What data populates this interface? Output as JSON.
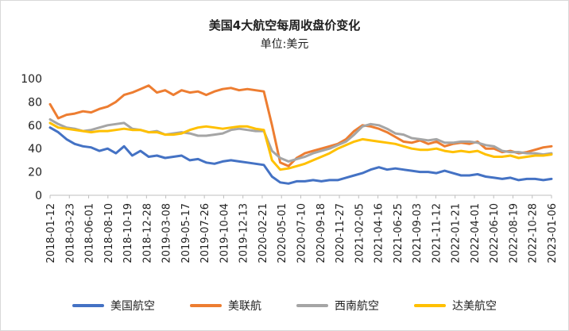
{
  "chart_data": {
    "type": "line",
    "title": "美国4大航空每周收盘价变化",
    "subtitle": "单位:美元",
    "xlabel": "",
    "ylabel": "",
    "ylim": [
      0,
      100
    ],
    "yticks": [
      0,
      20,
      40,
      60,
      80,
      100
    ],
    "grid": false,
    "legend": "bottom",
    "x_tick_labels": [
      "2018-01-12",
      "2018-03-23",
      "2018-06-01",
      "2018-08-10",
      "2018-10-19",
      "2018-12-28",
      "2019-03-08",
      "2019-05-17",
      "2019-07-26",
      "2019-10-04",
      "2019-12-13",
      "2020-02-21",
      "2020-05-01",
      "2020-07-10",
      "2020-09-18",
      "2020-11-27",
      "2021-02-05",
      "2021-04-16",
      "2021-06-25",
      "2021-09-03",
      "2021-11-12",
      "2022-01-21",
      "2022-04-01",
      "2022-06-10",
      "2022-08-19",
      "2022-10-28",
      "2023-01-06"
    ],
    "series": [
      {
        "name": "美国航空",
        "color": "#4472c4",
        "values": [
          58,
          54,
          48,
          44,
          42,
          41,
          38,
          40,
          36,
          42,
          34,
          38,
          33,
          34,
          32,
          33,
          34,
          30,
          31,
          28,
          27,
          29,
          30,
          29,
          28,
          27,
          26,
          16,
          11,
          10,
          12,
          12,
          13,
          12,
          13,
          13,
          15,
          17,
          19,
          22,
          24,
          22,
          23,
          22,
          21,
          20,
          20,
          19,
          21,
          19,
          17,
          17,
          18,
          16,
          15,
          14,
          15,
          13,
          14,
          14,
          13,
          14
        ]
      },
      {
        "name": "美联航",
        "color": "#ed7d31",
        "values": [
          78,
          66,
          69,
          70,
          72,
          71,
          74,
          76,
          80,
          86,
          88,
          91,
          94,
          88,
          90,
          86,
          90,
          88,
          89,
          86,
          89,
          91,
          92,
          90,
          91,
          90,
          89,
          60,
          28,
          25,
          32,
          36,
          38,
          40,
          42,
          44,
          48,
          55,
          60,
          59,
          57,
          54,
          50,
          46,
          45,
          47,
          44,
          46,
          42,
          44,
          45,
          44,
          46,
          40,
          40,
          37,
          38,
          36,
          37,
          39,
          41,
          42
        ]
      },
      {
        "name": "西南航空",
        "color": "#a5a5a5",
        "values": [
          65,
          61,
          58,
          57,
          55,
          56,
          58,
          60,
          61,
          62,
          57,
          56,
          54,
          55,
          52,
          53,
          54,
          53,
          51,
          51,
          52,
          53,
          56,
          57,
          56,
          55,
          55,
          38,
          32,
          29,
          31,
          33,
          36,
          38,
          40,
          43,
          46,
          52,
          59,
          61,
          60,
          57,
          53,
          52,
          49,
          48,
          47,
          48,
          45,
          45,
          46,
          46,
          45,
          43,
          42,
          38,
          37,
          37,
          36,
          36,
          35,
          36
        ]
      },
      {
        "name": "达美航空",
        "color": "#ffc000",
        "values": [
          62,
          58,
          57,
          56,
          55,
          54,
          55,
          55,
          56,
          57,
          56,
          56,
          54,
          54,
          52,
          52,
          53,
          56,
          58,
          59,
          58,
          57,
          58,
          59,
          59,
          57,
          56,
          30,
          22,
          23,
          25,
          27,
          30,
          33,
          36,
          40,
          43,
          46,
          48,
          47,
          46,
          45,
          44,
          42,
          40,
          39,
          39,
          40,
          38,
          37,
          38,
          37,
          38,
          35,
          33,
          33,
          34,
          32,
          33,
          34,
          34,
          35
        ]
      }
    ]
  }
}
